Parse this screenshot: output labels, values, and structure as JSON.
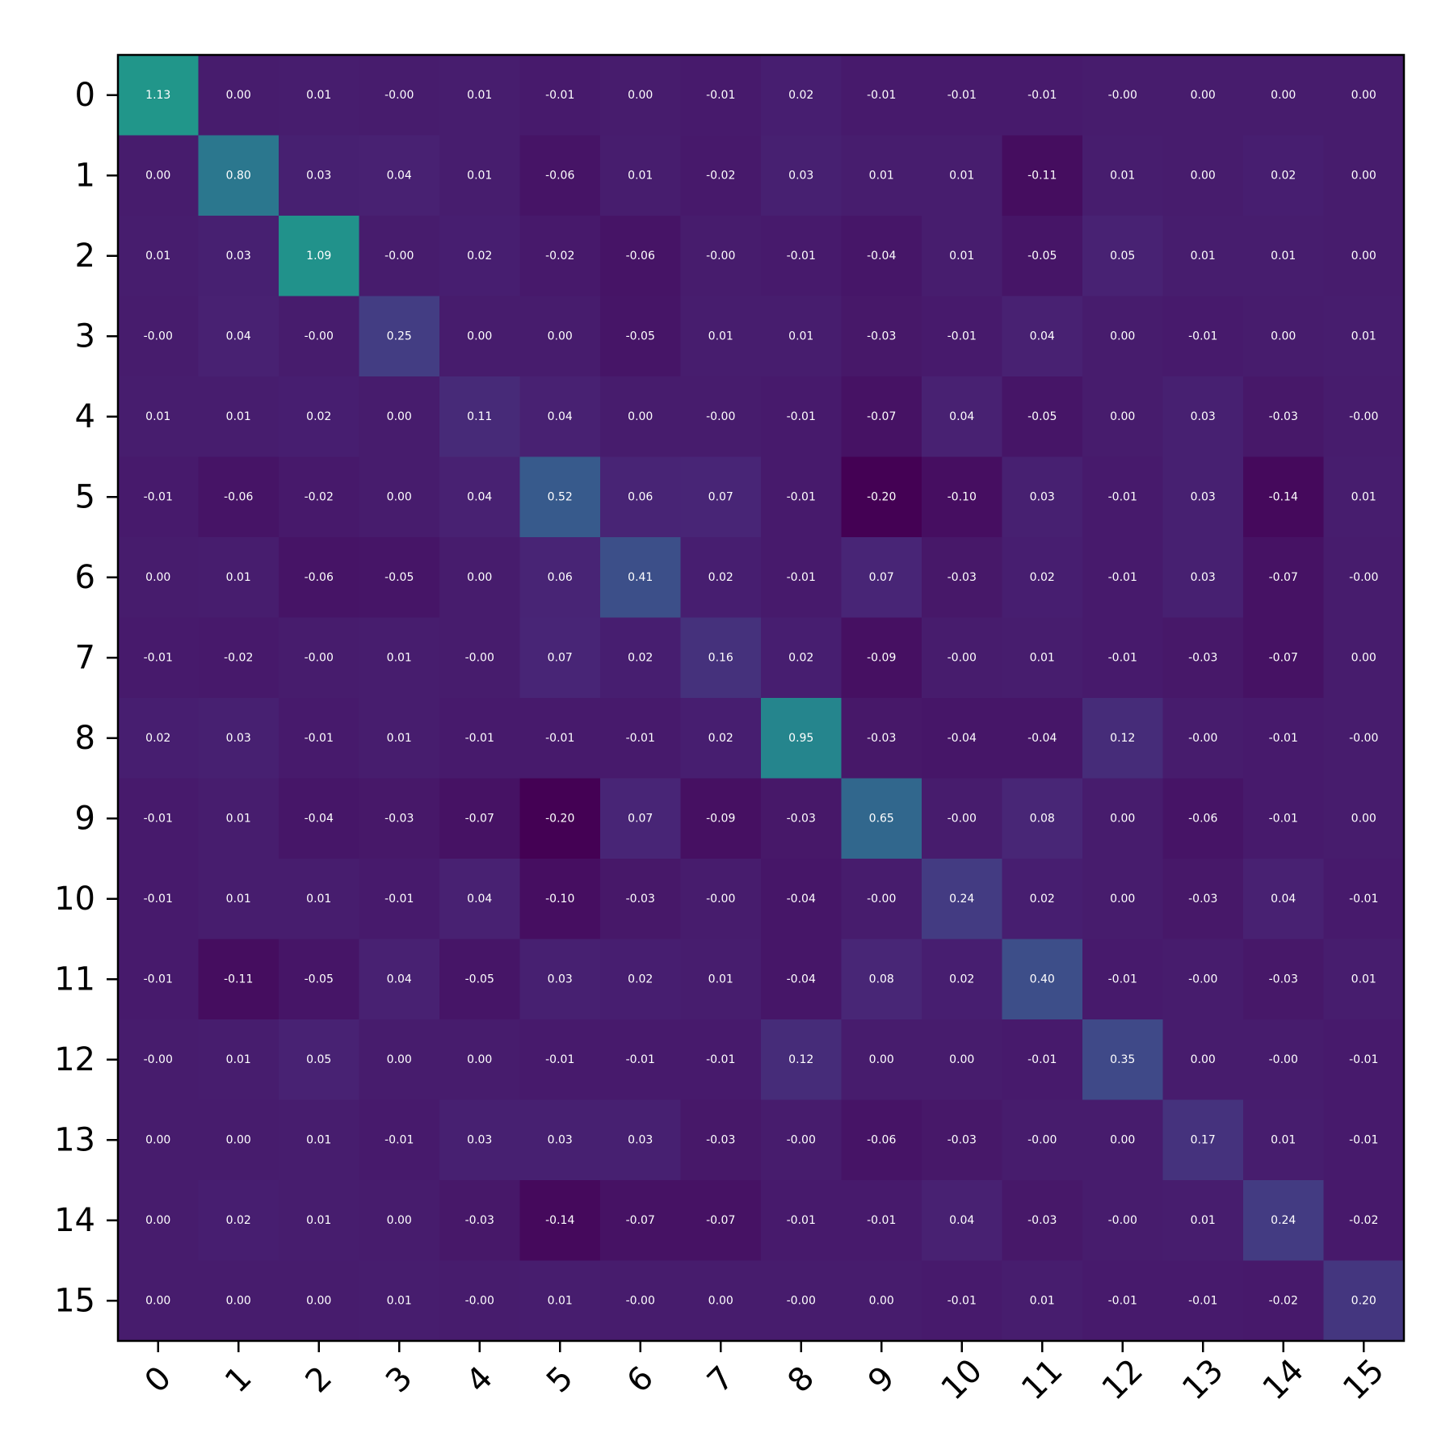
{
  "chart_data": {
    "type": "heatmap",
    "title": "",
    "xlabel": "",
    "ylabel": "",
    "x_tick_labels": [
      "0",
      "1",
      "2",
      "3",
      "4",
      "5",
      "6",
      "7",
      "8",
      "9",
      "10",
      "11",
      "12",
      "13",
      "14",
      "15"
    ],
    "y_tick_labels": [
      "0",
      "1",
      "2",
      "3",
      "4",
      "5",
      "6",
      "7",
      "8",
      "9",
      "10",
      "11",
      "12",
      "13",
      "14",
      "15"
    ],
    "colormap": "viridis",
    "color_range": [
      -0.2,
      1.13
    ],
    "values": [
      [
        1.13,
        0.0,
        0.01,
        -0.0,
        0.01,
        -0.01,
        0.0,
        -0.01,
        0.02,
        -0.01,
        -0.01,
        -0.01,
        -0.0,
        0.0,
        0.0,
        0.0
      ],
      [
        0.0,
        0.8,
        0.03,
        0.04,
        0.01,
        -0.06,
        0.01,
        -0.02,
        0.03,
        0.01,
        0.01,
        -0.11,
        0.01,
        0.0,
        0.02,
        0.0
      ],
      [
        0.01,
        0.03,
        1.09,
        -0.0,
        0.02,
        -0.02,
        -0.06,
        -0.0,
        -0.01,
        -0.04,
        0.01,
        -0.05,
        0.05,
        0.01,
        0.01,
        0.0
      ],
      [
        -0.0,
        0.04,
        -0.0,
        0.25,
        0.0,
        0.0,
        -0.05,
        0.01,
        0.01,
        -0.03,
        -0.01,
        0.04,
        0.0,
        -0.01,
        0.0,
        0.01
      ],
      [
        0.01,
        0.01,
        0.02,
        0.0,
        0.11,
        0.04,
        0.0,
        -0.0,
        -0.01,
        -0.07,
        0.04,
        -0.05,
        0.0,
        0.03,
        -0.03,
        -0.0
      ],
      [
        -0.01,
        -0.06,
        -0.02,
        0.0,
        0.04,
        0.52,
        0.06,
        0.07,
        -0.01,
        -0.2,
        -0.1,
        0.03,
        -0.01,
        0.03,
        -0.14,
        0.01
      ],
      [
        0.0,
        0.01,
        -0.06,
        -0.05,
        0.0,
        0.06,
        0.41,
        0.02,
        -0.01,
        0.07,
        -0.03,
        0.02,
        -0.01,
        0.03,
        -0.07,
        -0.0
      ],
      [
        -0.01,
        -0.02,
        -0.0,
        0.01,
        -0.0,
        0.07,
        0.02,
        0.16,
        0.02,
        -0.09,
        -0.0,
        0.01,
        -0.01,
        -0.03,
        -0.07,
        0.0
      ],
      [
        0.02,
        0.03,
        -0.01,
        0.01,
        -0.01,
        -0.01,
        -0.01,
        0.02,
        0.95,
        -0.03,
        -0.04,
        -0.04,
        0.12,
        -0.0,
        -0.01,
        -0.0
      ],
      [
        -0.01,
        0.01,
        -0.04,
        -0.03,
        -0.07,
        -0.2,
        0.07,
        -0.09,
        -0.03,
        0.65,
        -0.0,
        0.08,
        0.0,
        -0.06,
        -0.01,
        0.0
      ],
      [
        -0.01,
        0.01,
        0.01,
        -0.01,
        0.04,
        -0.1,
        -0.03,
        -0.0,
        -0.04,
        -0.0,
        0.24,
        0.02,
        0.0,
        -0.03,
        0.04,
        -0.01
      ],
      [
        -0.01,
        -0.11,
        -0.05,
        0.04,
        -0.05,
        0.03,
        0.02,
        0.01,
        -0.04,
        0.08,
        0.02,
        0.4,
        -0.01,
        -0.0,
        -0.03,
        0.01
      ],
      [
        -0.0,
        0.01,
        0.05,
        0.0,
        0.0,
        -0.01,
        -0.01,
        -0.01,
        0.12,
        0.0,
        0.0,
        -0.01,
        0.35,
        0.0,
        -0.0,
        -0.01
      ],
      [
        0.0,
        0.0,
        0.01,
        -0.01,
        0.03,
        0.03,
        0.03,
        -0.03,
        -0.0,
        -0.06,
        -0.03,
        -0.0,
        0.0,
        0.17,
        0.01,
        -0.01
      ],
      [
        0.0,
        0.02,
        0.01,
        0.0,
        -0.03,
        -0.14,
        -0.07,
        -0.07,
        -0.01,
        -0.01,
        0.04,
        -0.03,
        -0.0,
        0.01,
        0.24,
        -0.02
      ],
      [
        0.0,
        0.0,
        0.0,
        0.01,
        -0.0,
        0.01,
        -0.0,
        0.0,
        -0.0,
        0.0,
        -0.01,
        0.01,
        -0.01,
        -0.01,
        -0.02,
        0.2
      ]
    ],
    "value_labels": [
      [
        "1.13",
        "0.00",
        "0.01",
        "-0.00",
        "0.01",
        "-0.01",
        "0.00",
        "-0.01",
        "0.02",
        "-0.01",
        "-0.01",
        "-0.01",
        "-0.00",
        "0.00",
        "0.00",
        "0.00"
      ],
      [
        "0.00",
        "0.80",
        "0.03",
        "0.04",
        "0.01",
        "-0.06",
        "0.01",
        "-0.02",
        "0.03",
        "0.01",
        "0.01",
        "-0.11",
        "0.01",
        "0.00",
        "0.02",
        "0.00"
      ],
      [
        "0.01",
        "0.03",
        "1.09",
        "-0.00",
        "0.02",
        "-0.02",
        "-0.06",
        "-0.00",
        "-0.01",
        "-0.04",
        "0.01",
        "-0.05",
        "0.05",
        "0.01",
        "0.01",
        "0.00"
      ],
      [
        "-0.00",
        "0.04",
        "-0.00",
        "0.25",
        "0.00",
        "0.00",
        "-0.05",
        "0.01",
        "0.01",
        "-0.03",
        "-0.01",
        "0.04",
        "0.00",
        "-0.01",
        "0.00",
        "0.01"
      ],
      [
        "0.01",
        "0.01",
        "0.02",
        "0.00",
        "0.11",
        "0.04",
        "0.00",
        "-0.00",
        "-0.01",
        "-0.07",
        "0.04",
        "-0.05",
        "0.00",
        "0.03",
        "-0.03",
        "-0.00"
      ],
      [
        "-0.01",
        "-0.06",
        "-0.02",
        "0.00",
        "0.04",
        "0.52",
        "0.06",
        "0.07",
        "-0.01",
        "-0.20",
        "-0.10",
        "0.03",
        "-0.01",
        "0.03",
        "-0.14",
        "0.01"
      ],
      [
        "0.00",
        "0.01",
        "-0.06",
        "-0.05",
        "0.00",
        "0.06",
        "0.41",
        "0.02",
        "-0.01",
        "0.07",
        "-0.03",
        "0.02",
        "-0.01",
        "0.03",
        "-0.07",
        "-0.00"
      ],
      [
        "-0.01",
        "-0.02",
        "-0.00",
        "0.01",
        "-0.00",
        "0.07",
        "0.02",
        "0.16",
        "0.02",
        "-0.09",
        "-0.00",
        "0.01",
        "-0.01",
        "-0.03",
        "-0.07",
        "0.00"
      ],
      [
        "0.02",
        "0.03",
        "-0.01",
        "0.01",
        "-0.01",
        "-0.01",
        "-0.01",
        "0.02",
        "0.95",
        "-0.03",
        "-0.04",
        "-0.04",
        "0.12",
        "-0.00",
        "-0.01",
        "-0.00"
      ],
      [
        "-0.01",
        "0.01",
        "-0.04",
        "-0.03",
        "-0.07",
        "-0.20",
        "0.07",
        "-0.09",
        "-0.03",
        "0.65",
        "-0.00",
        "0.08",
        "0.00",
        "-0.06",
        "-0.01",
        "0.00"
      ],
      [
        "-0.01",
        "0.01",
        "0.01",
        "-0.01",
        "0.04",
        "-0.10",
        "-0.03",
        "-0.00",
        "-0.04",
        "-0.00",
        "0.24",
        "0.02",
        "0.00",
        "-0.03",
        "0.04",
        "-0.01"
      ],
      [
        "-0.01",
        "-0.11",
        "-0.05",
        "0.04",
        "-0.05",
        "0.03",
        "0.02",
        "0.01",
        "-0.04",
        "0.08",
        "0.02",
        "0.40",
        "-0.01",
        "-0.00",
        "-0.03",
        "0.01"
      ],
      [
        "-0.00",
        "0.01",
        "0.05",
        "0.00",
        "0.00",
        "-0.01",
        "-0.01",
        "-0.01",
        "0.12",
        "0.00",
        "0.00",
        "-0.01",
        "0.35",
        "0.00",
        "-0.00",
        "-0.01"
      ],
      [
        "0.00",
        "0.00",
        "0.01",
        "-0.01",
        "0.03",
        "0.03",
        "0.03",
        "-0.03",
        "-0.00",
        "-0.06",
        "-0.03",
        "-0.00",
        "0.00",
        "0.17",
        "0.01",
        "-0.01"
      ],
      [
        "0.00",
        "0.02",
        "0.01",
        "0.00",
        "-0.03",
        "-0.14",
        "-0.07",
        "-0.07",
        "-0.01",
        "-0.01",
        "0.04",
        "-0.03",
        "-0.00",
        "0.01",
        "0.24",
        "-0.02"
      ],
      [
        "0.00",
        "0.00",
        "0.00",
        "0.01",
        "-0.00",
        "0.01",
        "-0.00",
        "0.00",
        "-0.00",
        "0.00",
        "-0.01",
        "0.01",
        "-0.01",
        "-0.01",
        "-0.02",
        "0.20"
      ]
    ]
  }
}
